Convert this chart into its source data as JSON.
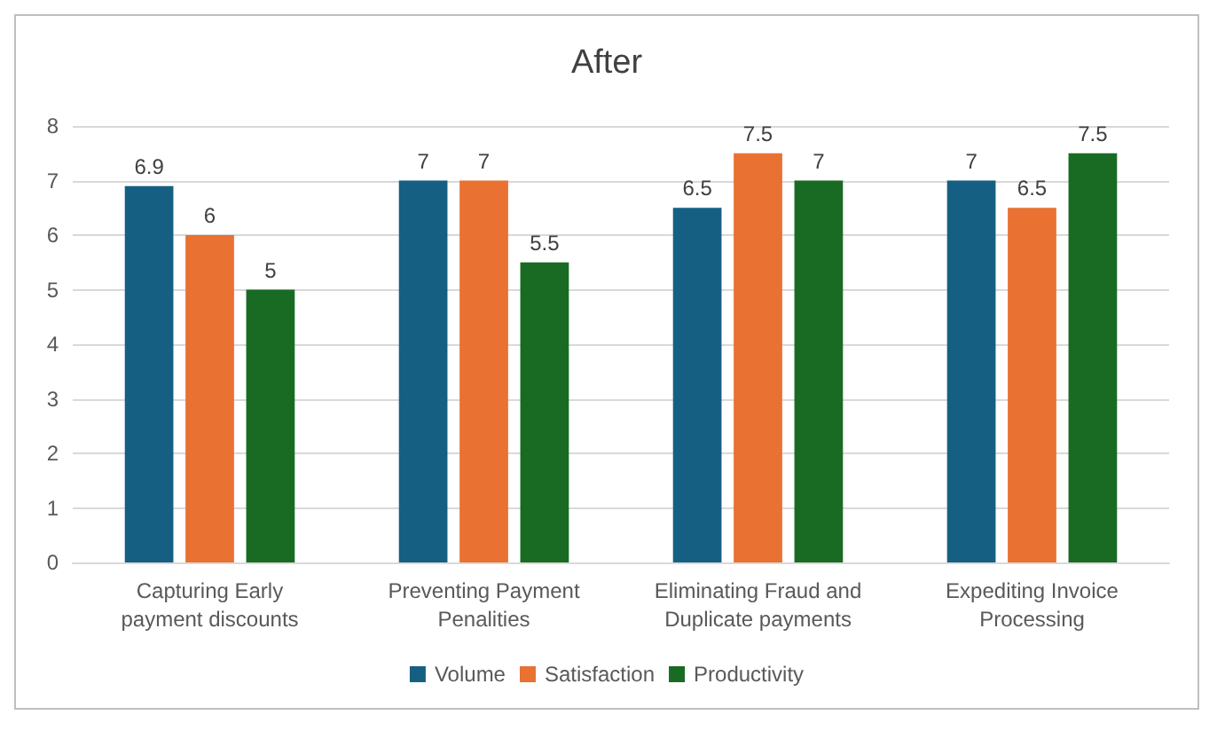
{
  "chart_data": {
    "type": "bar",
    "title": "After",
    "categories": [
      "Capturing Early\npayment discounts",
      "Preventing Payment\nPenalities",
      "Eliminating Fraud and\nDuplicate payments",
      "Expediting Invoice\nProcessing"
    ],
    "series": [
      {
        "name": "Volume",
        "color": "#156082",
        "values": [
          6.9,
          7,
          6.5,
          7
        ]
      },
      {
        "name": "Satisfaction",
        "color": "#e97132",
        "values": [
          6,
          7,
          7.5,
          6.5
        ]
      },
      {
        "name": "Productivity",
        "color": "#196b24",
        "values": [
          5,
          5.5,
          7,
          7.5
        ]
      }
    ],
    "ylim": [
      0,
      8
    ],
    "yticks": [
      0,
      1,
      2,
      3,
      4,
      5,
      6,
      7,
      8
    ],
    "grid": "y",
    "legend": "bottom",
    "data_labels": true
  }
}
